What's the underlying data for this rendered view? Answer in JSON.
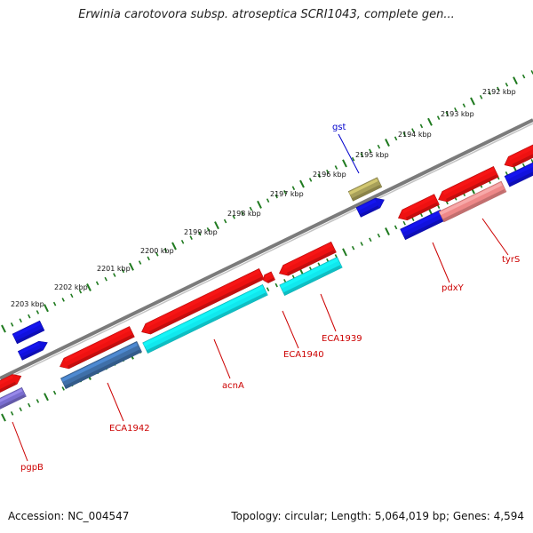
{
  "title": "Erwinia carotovora subsp. atroseptica SCRI1043, complete gen...",
  "footer": {
    "accession": "Accession: NC_004547",
    "topology": "Topology: circular; Length: 5,064,019 bp; Genes: 4,594"
  },
  "colors": {
    "backbone": "#7b7b7b",
    "ticks": "#1f7a1f",
    "gene_red": "#ee1111",
    "gene_blue": "#1111dd",
    "gene_cyan": "#11e8ee",
    "gene_steel": "#3f6fa8",
    "gene_pink": "#ee8888",
    "gene_olive": "#a8a05a",
    "gene_lavender": "#7a6ed0",
    "label_red": "#cc0000",
    "label_blue": "#0000cc"
  },
  "scale_labels": [
    "2192 kbp",
    "2193 kbp",
    "2194 kbp",
    "2195 kbp",
    "2196 kbp",
    "2197 kbp",
    "2198 kbp",
    "2199 kbp",
    "2200 kbp",
    "2201 kbp",
    "2202 kbp",
    "2203 kbp"
  ],
  "gene_labels": [
    {
      "text": "gst",
      "color": "label_blue"
    },
    {
      "text": "tyrS",
      "color": "label_red"
    },
    {
      "text": "pdxY",
      "color": "label_red"
    },
    {
      "text": "ECA1939",
      "color": "label_red"
    },
    {
      "text": "ECA1940",
      "color": "label_red"
    },
    {
      "text": "acnA",
      "color": "label_red"
    },
    {
      "text": "ECA1942",
      "color": "label_red"
    },
    {
      "text": "pgpB",
      "color": "label_red"
    }
  ],
  "features": [
    {
      "name": "gene-lavender-left",
      "color": "gene_lavender"
    },
    {
      "name": "gene-red-left",
      "color": "gene_red"
    },
    {
      "name": "gene-blue-1",
      "color": "gene_blue"
    },
    {
      "name": "gene-blue-2",
      "color": "gene_blue"
    },
    {
      "name": "gene-eca1942-cds",
      "color": "gene_steel"
    },
    {
      "name": "gene-eca1942-red",
      "color": "gene_red"
    },
    {
      "name": "gene-acna-red",
      "color": "gene_red"
    },
    {
      "name": "gene-acna-cds",
      "color": "gene_cyan"
    },
    {
      "name": "gene-eca1940-red",
      "color": "gene_red"
    },
    {
      "name": "gene-eca1939-red",
      "color": "gene_red"
    },
    {
      "name": "gene-eca1939-cds",
      "color": "gene_cyan"
    },
    {
      "name": "gene-gst-cds",
      "color": "gene_olive"
    },
    {
      "name": "gene-gst-blue",
      "color": "gene_blue"
    },
    {
      "name": "gene-pdxy-red",
      "color": "gene_red"
    },
    {
      "name": "gene-pdxy-blue",
      "color": "gene_blue"
    },
    {
      "name": "gene-tyrs-red",
      "color": "gene_red"
    },
    {
      "name": "gene-tyrs-cds",
      "color": "gene_pink"
    },
    {
      "name": "gene-right-red",
      "color": "gene_red"
    },
    {
      "name": "gene-right-blue",
      "color": "gene_blue"
    }
  ]
}
